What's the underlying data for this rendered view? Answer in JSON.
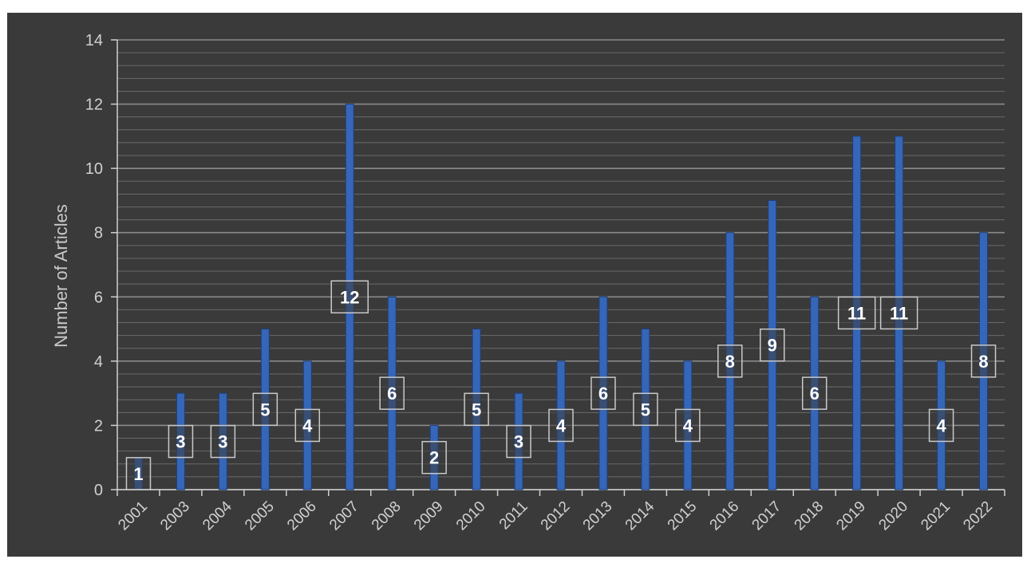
{
  "chart_data": {
    "type": "bar",
    "title": "",
    "xlabel": "",
    "ylabel": "Number of Articles",
    "ylim": [
      0,
      14
    ],
    "y_ticks": [
      "0",
      "2",
      "4",
      "6",
      "8",
      "10",
      "12",
      "14"
    ],
    "categories": [
      "2001",
      "2003",
      "2004",
      "2005",
      "2006",
      "2007",
      "2008",
      "2009",
      "2010",
      "2011",
      "2012",
      "2013",
      "2014",
      "2015",
      "2016",
      "2017",
      "2018",
      "2019",
      "2020",
      "2021",
      "2022"
    ],
    "values": [
      1,
      3,
      3,
      5,
      4,
      12,
      6,
      2,
      5,
      3,
      4,
      6,
      5,
      4,
      8,
      9,
      6,
      11,
      11,
      4,
      8
    ],
    "grid": true,
    "legend": "none",
    "data_labels": "centered at half bar height, boxed",
    "colors": {
      "background": "#3a3a3a",
      "bar": "#3566b8",
      "bar_edge": "#1f3f7a",
      "grid_major": "#8a8a8a",
      "grid_minor": "#6a6a6a",
      "text": "#d0d0d0",
      "label_text": "#ffffff",
      "label_border": "#c9c9c9"
    }
  }
}
